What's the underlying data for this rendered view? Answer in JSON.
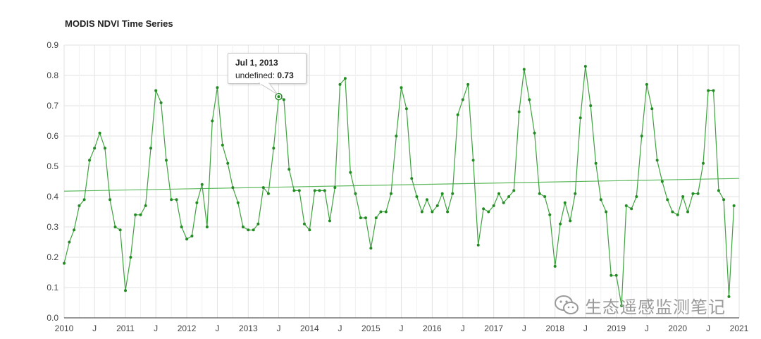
{
  "chart_data": {
    "type": "line",
    "title": "MODIS NDVI Time Series",
    "xlabel": "",
    "ylabel": "",
    "xlim": [
      "2010-01-01",
      "2021-01-01"
    ],
    "ylim": [
      0,
      0.9
    ],
    "y_ticks": [
      "0.0",
      "0.1",
      "0.2",
      "0.3",
      "0.4",
      "0.5",
      "0.6",
      "0.7",
      "0.8",
      "0.9"
    ],
    "x_ticks": [
      {
        "date": "2010-01-01",
        "label": "2010"
      },
      {
        "date": "2010-07-01",
        "label": "J"
      },
      {
        "date": "2011-01-01",
        "label": "2011"
      },
      {
        "date": "2011-07-01",
        "label": "J"
      },
      {
        "date": "2012-01-01",
        "label": "2012"
      },
      {
        "date": "2012-07-01",
        "label": "J"
      },
      {
        "date": "2013-01-01",
        "label": "2013"
      },
      {
        "date": "2013-07-01",
        "label": "J"
      },
      {
        "date": "2014-01-01",
        "label": "2014"
      },
      {
        "date": "2014-07-01",
        "label": "J"
      },
      {
        "date": "2015-01-01",
        "label": "2015"
      },
      {
        "date": "2015-07-01",
        "label": "J"
      },
      {
        "date": "2016-01-01",
        "label": "2016"
      },
      {
        "date": "2016-07-01",
        "label": "J"
      },
      {
        "date": "2017-01-01",
        "label": "2017"
      },
      {
        "date": "2017-07-01",
        "label": "J"
      },
      {
        "date": "2018-01-01",
        "label": "2018"
      },
      {
        "date": "2018-07-01",
        "label": "J"
      },
      {
        "date": "2019-01-01",
        "label": "2019"
      },
      {
        "date": "2019-07-01",
        "label": "J"
      },
      {
        "date": "2020-01-01",
        "label": "2020"
      },
      {
        "date": "2020-07-01",
        "label": "J"
      },
      {
        "date": "2021-01-01",
        "label": "2021"
      }
    ],
    "grid": true,
    "line_color": "#3ea33e",
    "point_color": "#228b22",
    "trend_color": "#5cb85c",
    "series": [
      {
        "x": [
          "2010-01-01",
          "2010-02-01",
          "2010-03-01",
          "2010-04-01",
          "2010-05-01",
          "2010-06-01",
          "2010-07-01",
          "2010-08-01",
          "2010-09-01",
          "2010-10-01",
          "2010-11-01",
          "2010-12-01",
          "2011-01-01",
          "2011-02-01",
          "2011-03-01",
          "2011-04-01",
          "2011-05-01",
          "2011-06-01",
          "2011-07-01",
          "2011-08-01",
          "2011-09-01",
          "2011-10-01",
          "2011-11-01",
          "2011-12-01",
          "2012-01-01",
          "2012-02-01",
          "2012-03-01",
          "2012-04-01",
          "2012-05-01",
          "2012-06-01",
          "2012-07-01",
          "2012-08-01",
          "2012-09-01",
          "2012-10-01",
          "2012-11-01",
          "2012-12-01",
          "2013-01-01",
          "2013-02-01",
          "2013-03-01",
          "2013-04-01",
          "2013-05-01",
          "2013-06-01",
          "2013-07-01",
          "2013-08-01",
          "2013-09-01",
          "2013-10-01",
          "2013-11-01",
          "2013-12-01",
          "2014-01-01",
          "2014-02-01",
          "2014-03-01",
          "2014-04-01",
          "2014-05-01",
          "2014-06-01",
          "2014-07-01",
          "2014-08-01",
          "2014-09-01",
          "2014-10-01",
          "2014-11-01",
          "2014-12-01",
          "2015-01-01",
          "2015-02-01",
          "2015-03-01",
          "2015-04-01",
          "2015-05-01",
          "2015-06-01",
          "2015-07-01",
          "2015-08-01",
          "2015-09-01",
          "2015-10-01",
          "2015-11-01",
          "2015-12-01",
          "2016-01-01",
          "2016-02-01",
          "2016-03-01",
          "2016-04-01",
          "2016-05-01",
          "2016-06-01",
          "2016-07-01",
          "2016-08-01",
          "2016-09-01",
          "2016-10-01",
          "2016-11-01",
          "2016-12-01",
          "2017-01-01",
          "2017-02-01",
          "2017-03-01",
          "2017-04-01",
          "2017-05-01",
          "2017-06-01",
          "2017-07-01",
          "2017-08-01",
          "2017-09-01",
          "2017-10-01",
          "2017-11-01",
          "2017-12-01",
          "2018-01-01",
          "2018-02-01",
          "2018-03-01",
          "2018-04-01",
          "2018-05-01",
          "2018-06-01",
          "2018-07-01",
          "2018-08-01",
          "2018-09-01",
          "2018-10-01",
          "2018-11-01",
          "2018-12-01",
          "2019-01-01",
          "2019-02-01",
          "2019-03-01",
          "2019-04-01",
          "2019-05-01",
          "2019-06-01",
          "2019-07-01",
          "2019-08-01",
          "2019-09-01",
          "2019-10-01",
          "2019-11-01",
          "2019-12-01",
          "2020-01-01",
          "2020-02-01",
          "2020-03-01",
          "2020-04-01",
          "2020-05-01",
          "2020-06-01",
          "2020-07-01",
          "2020-08-01",
          "2020-09-01",
          "2020-10-01",
          "2020-11-01",
          "2020-12-01"
        ],
        "y": [
          0.18,
          0.25,
          0.29,
          0.37,
          0.39,
          0.52,
          0.56,
          0.61,
          0.56,
          0.39,
          0.3,
          0.29,
          0.09,
          0.2,
          0.34,
          0.34,
          0.37,
          0.56,
          0.75,
          0.71,
          0.52,
          0.39,
          0.39,
          0.3,
          0.26,
          0.27,
          0.38,
          0.44,
          0.3,
          0.65,
          0.76,
          0.57,
          0.51,
          0.43,
          0.38,
          0.3,
          0.29,
          0.29,
          0.31,
          0.43,
          0.41,
          0.56,
          0.73,
          0.72,
          0.49,
          0.42,
          0.42,
          0.31,
          0.29,
          0.42,
          0.42,
          0.42,
          0.32,
          0.43,
          0.77,
          0.79,
          0.48,
          0.41,
          0.33,
          0.33,
          0.23,
          0.33,
          0.35,
          0.35,
          0.41,
          0.6,
          0.76,
          0.69,
          0.46,
          0.4,
          0.35,
          0.39,
          0.35,
          0.37,
          0.41,
          0.35,
          0.41,
          0.67,
          0.72,
          0.77,
          0.52,
          0.24,
          0.36,
          0.35,
          0.37,
          0.41,
          0.38,
          0.4,
          0.42,
          0.68,
          0.82,
          0.72,
          0.61,
          0.41,
          0.4,
          0.34,
          0.17,
          0.31,
          0.38,
          0.32,
          0.41,
          0.66,
          0.83,
          0.7,
          0.51,
          0.39,
          0.35,
          0.14,
          0.14,
          0.04,
          0.37,
          0.36,
          0.4,
          0.6,
          0.77,
          0.69,
          0.52,
          0.45,
          0.39,
          0.35,
          0.34,
          0.4,
          0.35,
          0.41,
          0.41,
          0.51,
          0.75,
          0.75,
          0.42,
          0.39,
          0.07,
          0.37
        ]
      }
    ],
    "trend": {
      "x": [
        "2010-01-01",
        "2021-01-01"
      ],
      "y": [
        0.418,
        0.46
      ]
    },
    "tooltip": {
      "date": "Jul 1, 2013",
      "label": "undefined:",
      "value": "0.73",
      "x": "2013-07-01",
      "y": 0.73
    }
  },
  "watermark": {
    "text": "生态遥感监测笔记",
    "icon": "wechat-icon",
    "color": "#9a9a9a"
  }
}
